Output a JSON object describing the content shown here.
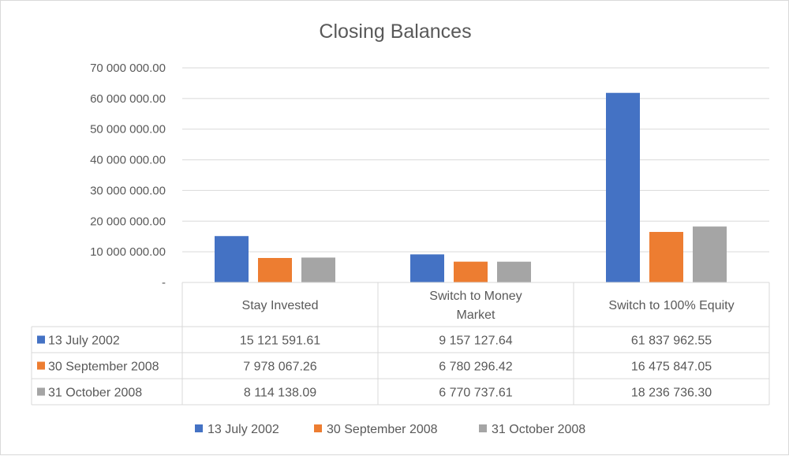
{
  "chart_data": {
    "type": "bar",
    "title": "Closing Balances",
    "categories": [
      "Stay Invested",
      "Switch to Money Market",
      "Switch to 100% Equity"
    ],
    "category_lines": [
      [
        "Stay Invested"
      ],
      [
        "Switch to Money",
        "Market"
      ],
      [
        "Switch to 100% Equity"
      ]
    ],
    "series": [
      {
        "name": "13 July 2002",
        "color": "#4472c4",
        "values": [
          15121591.61,
          9157127.64,
          61837962.55
        ],
        "labels": [
          "15 121 591.61",
          "9 157 127.64",
          "61 837 962.55"
        ]
      },
      {
        "name": "30 September 2008",
        "color": "#ed7d31",
        "values": [
          7978067.26,
          6780296.42,
          16475847.05
        ],
        "labels": [
          "7 978 067.26",
          "6 780 296.42",
          "16 475 847.05"
        ]
      },
      {
        "name": "31 October 2008",
        "color": "#a5a5a5",
        "values": [
          8114138.09,
          6770737.61,
          18236736.3
        ],
        "labels": [
          "8 114 138.09",
          "6 770 737.61",
          "18 236 736.30"
        ]
      }
    ],
    "ylim": [
      0,
      70000000
    ],
    "y_ticks": [
      0,
      10000000,
      20000000,
      30000000,
      40000000,
      50000000,
      60000000,
      70000000
    ],
    "y_tick_labels": [
      "-",
      "10 000 000.00",
      "20 000 000.00",
      "30 000 000.00",
      "40 000 000.00",
      "50 000 000.00",
      "60 000 000.00",
      "70 000 000.00"
    ],
    "grid": true,
    "data_table": true,
    "legend_position": "bottom"
  }
}
